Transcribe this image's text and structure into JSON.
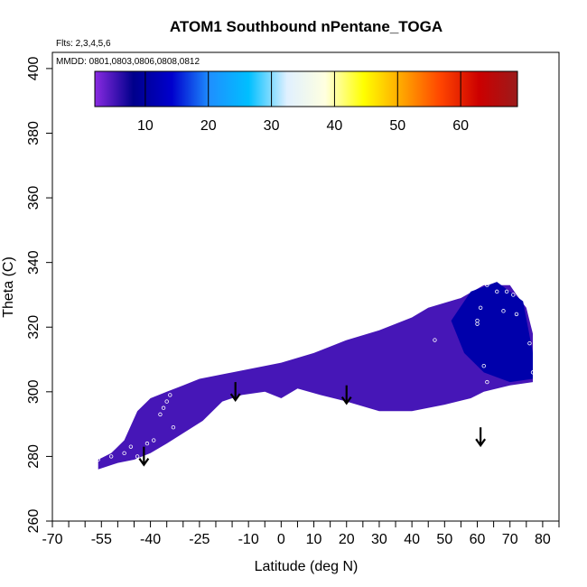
{
  "chart_data": {
    "type": "heatmap",
    "title": "ATOM1 Southbound nPentane_TOGA",
    "flights_note": "Flts: 2,3,4,5,6",
    "dates_note": "MMDD: 0801,0803,0806,0808,0812",
    "xlabel": "Latitude (deg N)",
    "ylabel": "Theta (C)",
    "xlim": [
      -70,
      85
    ],
    "ylim": [
      260,
      405
    ],
    "x_ticks": [
      -70,
      -55,
      -40,
      -25,
      -10,
      0,
      10,
      20,
      30,
      40,
      50,
      60,
      70,
      80
    ],
    "x_minor_ticks": [
      -65,
      -60,
      -50,
      -45,
      -35,
      -30,
      -20,
      -15,
      -5,
      5,
      15,
      25,
      35,
      45,
      55,
      65,
      75,
      85
    ],
    "y_ticks": [
      260,
      280,
      300,
      320,
      340,
      360,
      380,
      400
    ],
    "colorbar": {
      "min": 2,
      "max": 69,
      "ticks": [
        10,
        20,
        30,
        40,
        50,
        60
      ],
      "colors": [
        "#8a2be2",
        "#00008b",
        "#0000cd",
        "#1e90ff",
        "#00bfff",
        "#e0f0ff",
        "#ffffe0",
        "#ffff00",
        "#ffa500",
        "#ff4500",
        "#cc0000",
        "#9b1b1b"
      ]
    },
    "upper_boundary": [
      {
        "lat": -56,
        "theta": 279
      },
      {
        "lat": -52,
        "theta": 281
      },
      {
        "lat": -48,
        "theta": 285
      },
      {
        "lat": -44,
        "theta": 294
      },
      {
        "lat": -40,
        "theta": 298
      },
      {
        "lat": -35,
        "theta": 300
      },
      {
        "lat": -30,
        "theta": 302
      },
      {
        "lat": -25,
        "theta": 304
      },
      {
        "lat": -15,
        "theta": 306
      },
      {
        "lat": 0,
        "theta": 309
      },
      {
        "lat": 10,
        "theta": 312
      },
      {
        "lat": 20,
        "theta": 316
      },
      {
        "lat": 30,
        "theta": 319
      },
      {
        "lat": 40,
        "theta": 323
      },
      {
        "lat": 45,
        "theta": 326
      },
      {
        "lat": 55,
        "theta": 329
      },
      {
        "lat": 62,
        "theta": 333
      },
      {
        "lat": 70,
        "theta": 333
      },
      {
        "lat": 72,
        "theta": 330
      },
      {
        "lat": 75,
        "theta": 326
      },
      {
        "lat": 77,
        "theta": 318
      },
      {
        "lat": 77,
        "theta": 303
      }
    ],
    "lower_boundary": [
      {
        "lat": -56,
        "theta": 276
      },
      {
        "lat": -50,
        "theta": 278
      },
      {
        "lat": -45,
        "theta": 279
      },
      {
        "lat": -40,
        "theta": 281
      },
      {
        "lat": -35,
        "theta": 284
      },
      {
        "lat": -24,
        "theta": 291
      },
      {
        "lat": -18,
        "theta": 297
      },
      {
        "lat": -12,
        "theta": 299
      },
      {
        "lat": -5,
        "theta": 300
      },
      {
        "lat": 0,
        "theta": 298
      },
      {
        "lat": 5,
        "theta": 301
      },
      {
        "lat": 12,
        "theta": 299
      },
      {
        "lat": 20,
        "theta": 297
      },
      {
        "lat": 30,
        "theta": 294
      },
      {
        "lat": 40,
        "theta": 294
      },
      {
        "lat": 50,
        "theta": 296
      },
      {
        "lat": 58,
        "theta": 298
      },
      {
        "lat": 62,
        "theta": 300
      },
      {
        "lat": 70,
        "theta": 302
      },
      {
        "lat": 77,
        "theta": 303
      }
    ],
    "high_value_region": [
      {
        "lat": 52,
        "theta": 322
      },
      {
        "lat": 58,
        "theta": 331
      },
      {
        "lat": 66,
        "theta": 334
      },
      {
        "lat": 74,
        "theta": 328
      },
      {
        "lat": 77,
        "theta": 312
      },
      {
        "lat": 77,
        "theta": 304
      },
      {
        "lat": 70,
        "theta": 303
      },
      {
        "lat": 62,
        "theta": 306
      },
      {
        "lat": 56,
        "theta": 312
      }
    ],
    "base_value": 5,
    "high_value": 11,
    "arrows": [
      {
        "lat": -42,
        "theta": 283
      },
      {
        "lat": -14,
        "theta": 303
      },
      {
        "lat": 20,
        "theta": 302
      },
      {
        "lat": 61,
        "theta": 289
      }
    ],
    "sample_points": [
      {
        "lat": -56,
        "theta": 279
      },
      {
        "lat": -52,
        "theta": 280
      },
      {
        "lat": -48,
        "theta": 281
      },
      {
        "lat": -46,
        "theta": 283
      },
      {
        "lat": -44,
        "theta": 280
      },
      {
        "lat": -41,
        "theta": 284
      },
      {
        "lat": -39,
        "theta": 285
      },
      {
        "lat": -37,
        "theta": 293
      },
      {
        "lat": -36,
        "theta": 295
      },
      {
        "lat": -35,
        "theta": 297
      },
      {
        "lat": -33,
        "theta": 289
      },
      {
        "lat": -30,
        "theta": 286
      },
      {
        "lat": -28,
        "theta": 287
      },
      {
        "lat": -34,
        "theta": 299
      },
      {
        "lat": 47,
        "theta": 316
      },
      {
        "lat": 60,
        "theta": 322
      },
      {
        "lat": 61,
        "theta": 326
      },
      {
        "lat": 63,
        "theta": 333
      },
      {
        "lat": 66,
        "theta": 331
      },
      {
        "lat": 69,
        "theta": 331
      },
      {
        "lat": 71,
        "theta": 330
      },
      {
        "lat": 72,
        "theta": 324
      },
      {
        "lat": 76,
        "theta": 315
      },
      {
        "lat": 77,
        "theta": 306
      },
      {
        "lat": 62,
        "theta": 308
      },
      {
        "lat": 63,
        "theta": 303
      },
      {
        "lat": 60,
        "theta": 321
      },
      {
        "lat": 68,
        "theta": 325
      }
    ]
  }
}
